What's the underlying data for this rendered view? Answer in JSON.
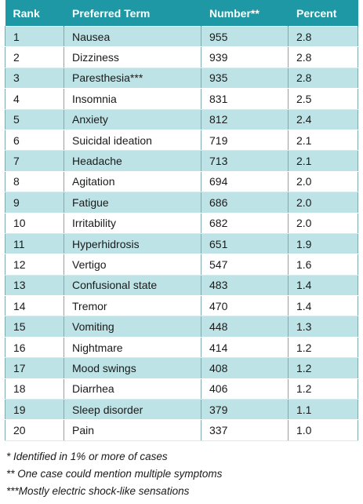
{
  "table": {
    "header": [
      "Rank",
      "Preferred Term",
      "Number**",
      "Percent"
    ],
    "rows": [
      [
        "1",
        "Nausea",
        "955",
        "2.8"
      ],
      [
        "2",
        "Dizziness",
        "939",
        "2.8"
      ],
      [
        "3",
        "Paresthesia***",
        "935",
        "2.8"
      ],
      [
        "4",
        "Insomnia",
        "831",
        "2.5"
      ],
      [
        "5",
        "Anxiety",
        "812",
        "2.4"
      ],
      [
        "6",
        "Suicidal ideation",
        "719",
        "2.1"
      ],
      [
        "7",
        "Headache",
        "713",
        "2.1"
      ],
      [
        "8",
        "Agitation",
        "694",
        "2.0"
      ],
      [
        "9",
        "Fatigue",
        "686",
        "2.0"
      ],
      [
        "10",
        "Irritability",
        "682",
        "2.0"
      ],
      [
        "11",
        "Hyperhidrosis",
        "651",
        "1.9"
      ],
      [
        "12",
        "Vertigo",
        "547",
        "1.6"
      ],
      [
        "13",
        "Confusional state",
        "483",
        "1.4"
      ],
      [
        "14",
        "Tremor",
        "470",
        "1.4"
      ],
      [
        "15",
        "Vomiting",
        "448",
        "1.3"
      ],
      [
        "16",
        "Nightmare",
        "414",
        "1.2"
      ],
      [
        "17",
        "Mood swings",
        "408",
        "1.2"
      ],
      [
        "18",
        "Diarrhea",
        "406",
        "1.2"
      ],
      [
        "19",
        "Sleep disorder",
        "379",
        "1.1"
      ],
      [
        "20",
        "Pain",
        "337",
        "1.0"
      ]
    ]
  },
  "footnotes": [
    "* Identified in 1% or more of cases",
    "** One case could mention multiple symptoms",
    "***Mostly electric shock-like sensations"
  ]
}
